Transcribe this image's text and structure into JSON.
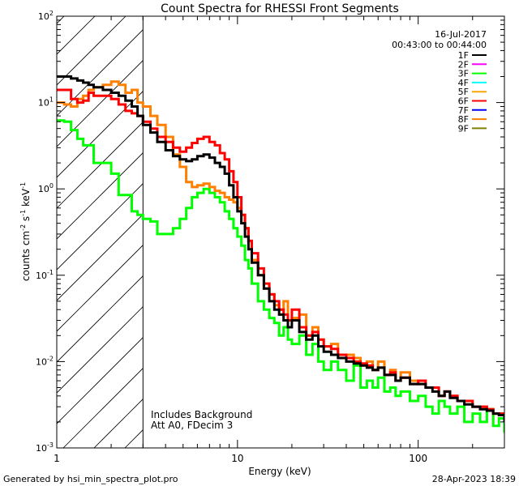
{
  "chart_data": {
    "type": "line",
    "title": "Count Spectra for RHESSI Front Segments",
    "xlabel": "Energy (keV)",
    "ylabel_parts": {
      "main": "counts cm",
      "exp1": "-2",
      "mid": " s",
      "exp2": "-1",
      "mid2": " keV",
      "exp3": "-1"
    },
    "xscale": "log",
    "yscale": "log",
    "xlim": [
      1,
      300
    ],
    "ylim": [
      0.001,
      100
    ],
    "x_ticks": [
      "1",
      "10",
      "100"
    ],
    "y_ticks": [
      {
        "base": "10",
        "exp": "-3"
      },
      {
        "base": "10",
        "exp": "-2"
      },
      {
        "base": "10",
        "exp": "-1"
      },
      {
        "base": "10",
        "exp": "0"
      },
      {
        "base": "10",
        "exp": "1"
      },
      {
        "base": "10",
        "exp": "2"
      }
    ],
    "date": "16-Jul-2017",
    "time_range": "00:43:00 to 00:44:00",
    "excluded_region_max_keV": 3,
    "annotations": [
      "Includes Background",
      "Att A0, FDecim 3"
    ],
    "legend_position": "top-right",
    "legend": [
      {
        "label": "1F",
        "color": "#000000"
      },
      {
        "label": "2F",
        "color": "#ff00ff"
      },
      {
        "label": "3F",
        "color": "#00ff00"
      },
      {
        "label": "4F",
        "color": "#00ffff"
      },
      {
        "label": "5F",
        "color": "#ffa500"
      },
      {
        "label": "6F",
        "color": "#ff0000"
      },
      {
        "label": "7F",
        "color": "#0000ff"
      },
      {
        "label": "8F",
        "color": "#ff8000"
      },
      {
        "label": "9F",
        "color": "#808000"
      }
    ],
    "series": [
      {
        "name": "3F",
        "color": "#00ff00",
        "x": [
          1.0,
          1.1,
          1.2,
          1.3,
          1.4,
          1.5,
          1.6,
          1.8,
          2.0,
          2.2,
          2.4,
          2.6,
          2.8,
          3.0,
          3.3,
          3.6,
          4.0,
          4.4,
          4.8,
          5.2,
          5.6,
          6.0,
          6.5,
          7.0,
          7.5,
          8.0,
          8.5,
          9.0,
          9.5,
          10.0,
          10.5,
          11.0,
          11.5,
          12.0,
          13.0,
          14.0,
          15.0,
          16.0,
          17.0,
          18.0,
          19.0,
          20.0,
          22.0,
          24.0,
          26.0,
          28.0,
          30.0,
          33.0,
          36.0,
          40.0,
          44.0,
          48.0,
          52.0,
          56.0,
          60.0,
          65.0,
          70.0,
          75.0,
          80.0,
          90.0,
          100.0,
          110.0,
          120.0,
          130.0,
          140.0,
          150.0,
          165.0,
          180.0,
          200.0,
          220.0,
          240.0,
          260.0,
          280.0,
          300.0
        ],
        "y": [
          6.2,
          6.0,
          4.8,
          3.8,
          3.2,
          3.2,
          2.0,
          2.0,
          1.5,
          0.85,
          0.85,
          0.55,
          0.5,
          0.45,
          0.42,
          0.3,
          0.3,
          0.35,
          0.45,
          0.6,
          0.8,
          0.9,
          1.0,
          0.9,
          0.8,
          0.7,
          0.55,
          0.45,
          0.35,
          0.28,
          0.22,
          0.15,
          0.12,
          0.08,
          0.05,
          0.04,
          0.032,
          0.028,
          0.02,
          0.025,
          0.018,
          0.016,
          0.02,
          0.012,
          0.016,
          0.01,
          0.008,
          0.01,
          0.008,
          0.006,
          0.009,
          0.005,
          0.006,
          0.005,
          0.0065,
          0.0045,
          0.005,
          0.004,
          0.0045,
          0.0035,
          0.004,
          0.003,
          0.0025,
          0.0035,
          0.003,
          0.0025,
          0.003,
          0.002,
          0.0025,
          0.002,
          0.0028,
          0.0018,
          0.0022,
          0.0015
        ]
      },
      {
        "name": "8F",
        "color": "#ff8000",
        "x": [
          1.0,
          1.1,
          1.2,
          1.3,
          1.4,
          1.5,
          1.6,
          1.8,
          2.0,
          2.2,
          2.4,
          2.6,
          2.8,
          3.0,
          3.3,
          3.6,
          4.0,
          4.4,
          4.8,
          5.2,
          5.6,
          6.0,
          6.5,
          7.0,
          7.5,
          8.0,
          8.5,
          9.0,
          9.5,
          10.0,
          10.5,
          11.0,
          11.5,
          12.0,
          13.0,
          14.0,
          15.0,
          16.0,
          17.0,
          18.0,
          19.0,
          20.0,
          22.0,
          24.0,
          26.0,
          28.0,
          30.0,
          33.0,
          36.0,
          40.0,
          44.0,
          48.0,
          52.0,
          56.0,
          60.0,
          65.0,
          70.0,
          75.0,
          80.0,
          90.0,
          100.0,
          110.0,
          120.0,
          130.0,
          140.0,
          150.0,
          165.0,
          180.0,
          200.0,
          220.0,
          240.0,
          260.0,
          280.0,
          300.0
        ],
        "y": [
          10.0,
          9.5,
          9.0,
          11.0,
          12.0,
          14.0,
          15.0,
          16.0,
          17.5,
          16.0,
          13.0,
          14.0,
          10.0,
          9.0,
          7.0,
          5.5,
          4.0,
          2.5,
          1.8,
          1.2,
          1.05,
          1.1,
          1.15,
          1.05,
          0.95,
          0.9,
          0.8,
          0.75,
          0.7,
          0.6,
          0.5,
          0.35,
          0.25,
          0.15,
          0.1,
          0.07,
          0.06,
          0.045,
          0.04,
          0.05,
          0.03,
          0.032,
          0.035,
          0.02,
          0.025,
          0.018,
          0.015,
          0.016,
          0.012,
          0.012,
          0.011,
          0.009,
          0.01,
          0.008,
          0.01,
          0.007,
          0.008,
          0.006,
          0.0075,
          0.006,
          0.0055,
          0.005,
          0.005,
          0.004,
          0.0045,
          0.004,
          0.0035,
          0.0035,
          0.003,
          0.003,
          0.0028,
          0.0025,
          0.0025,
          0.002
        ]
      },
      {
        "name": "6F",
        "color": "#ff0000",
        "x": [
          1.0,
          1.1,
          1.2,
          1.3,
          1.4,
          1.5,
          1.6,
          1.8,
          2.0,
          2.2,
          2.4,
          2.6,
          2.8,
          3.0,
          3.3,
          3.6,
          4.0,
          4.4,
          4.8,
          5.2,
          5.6,
          6.0,
          6.5,
          7.0,
          7.5,
          8.0,
          8.5,
          9.0,
          9.5,
          10.0,
          10.5,
          11.0,
          11.5,
          12.0,
          13.0,
          14.0,
          15.0,
          16.0,
          17.0,
          18.0,
          19.0,
          20.0,
          22.0,
          24.0,
          26.0,
          28.0,
          30.0,
          33.0,
          36.0,
          40.0,
          44.0,
          48.0,
          52.0,
          56.0,
          60.0,
          65.0,
          70.0,
          75.0,
          80.0,
          90.0,
          100.0,
          110.0,
          120.0,
          130.0,
          140.0,
          150.0,
          165.0,
          180.0,
          200.0,
          220.0,
          240.0,
          260.0,
          280.0,
          300.0
        ],
        "y": [
          14.0,
          14.0,
          11.0,
          10.0,
          10.5,
          13.0,
          12.0,
          12.0,
          11.0,
          9.5,
          8.0,
          7.5,
          7.0,
          6.0,
          5.0,
          4.0,
          3.5,
          3.0,
          2.7,
          3.0,
          3.4,
          3.8,
          4.0,
          3.5,
          3.2,
          2.6,
          2.2,
          1.6,
          1.2,
          0.8,
          0.5,
          0.35,
          0.25,
          0.18,
          0.12,
          0.08,
          0.06,
          0.05,
          0.04,
          0.035,
          0.03,
          0.04,
          0.025,
          0.02,
          0.022,
          0.018,
          0.015,
          0.014,
          0.012,
          0.011,
          0.01,
          0.0095,
          0.009,
          0.008,
          0.0085,
          0.007,
          0.0075,
          0.006,
          0.0065,
          0.0055,
          0.006,
          0.005,
          0.005,
          0.004,
          0.0045,
          0.004,
          0.0035,
          0.0035,
          0.003,
          0.003,
          0.0028,
          0.0025,
          0.0025,
          0.002
        ]
      },
      {
        "name": "1F",
        "color": "#000000",
        "x": [
          1.0,
          1.1,
          1.2,
          1.3,
          1.4,
          1.5,
          1.6,
          1.8,
          2.0,
          2.2,
          2.4,
          2.6,
          2.8,
          3.0,
          3.3,
          3.6,
          4.0,
          4.4,
          4.8,
          5.2,
          5.6,
          6.0,
          6.5,
          7.0,
          7.5,
          8.0,
          8.5,
          9.0,
          9.5,
          10.0,
          10.5,
          11.0,
          11.5,
          12.0,
          13.0,
          14.0,
          15.0,
          16.0,
          17.0,
          18.0,
          19.0,
          20.0,
          22.0,
          24.0,
          26.0,
          28.0,
          30.0,
          33.0,
          36.0,
          40.0,
          44.0,
          48.0,
          52.0,
          56.0,
          60.0,
          65.0,
          70.0,
          75.0,
          80.0,
          90.0,
          100.0,
          110.0,
          120.0,
          130.0,
          140.0,
          150.0,
          165.0,
          180.0,
          200.0,
          220.0,
          240.0,
          260.0,
          280.0,
          300.0
        ],
        "y": [
          20.0,
          20.0,
          19.0,
          18.0,
          17.0,
          16.0,
          15.0,
          14.0,
          13.0,
          12.0,
          10.5,
          9.0,
          7.0,
          5.5,
          4.5,
          3.5,
          2.8,
          2.4,
          2.2,
          2.1,
          2.2,
          2.4,
          2.5,
          2.3,
          2.0,
          1.8,
          1.5,
          1.1,
          0.8,
          0.55,
          0.4,
          0.28,
          0.2,
          0.14,
          0.1,
          0.07,
          0.05,
          0.04,
          0.035,
          0.03,
          0.025,
          0.03,
          0.022,
          0.018,
          0.02,
          0.015,
          0.013,
          0.012,
          0.011,
          0.01,
          0.0095,
          0.009,
          0.0085,
          0.008,
          0.0085,
          0.007,
          0.007,
          0.006,
          0.0065,
          0.0055,
          0.0055,
          0.005,
          0.0045,
          0.004,
          0.0045,
          0.0038,
          0.0035,
          0.0032,
          0.003,
          0.0028,
          0.0027,
          0.0025,
          0.0024,
          0.002
        ]
      }
    ]
  },
  "footer": {
    "generated_by": "Generated by hsi_min_spectra_plot.pro",
    "timestamp": "28-Apr-2023 18:39"
  }
}
